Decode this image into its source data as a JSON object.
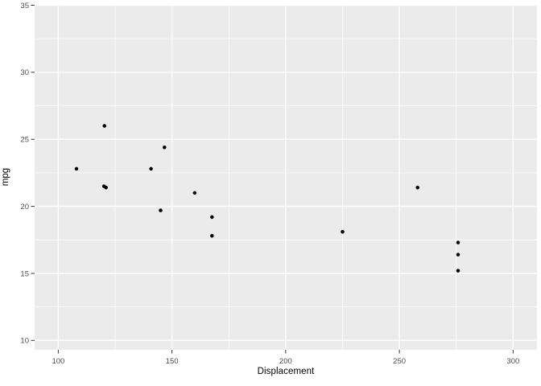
{
  "chart_data": {
    "type": "scatter",
    "title": "",
    "xlabel": "Displacement",
    "ylabel": "mpg",
    "points": [
      {
        "x": 108.0,
        "y": 22.8
      },
      {
        "x": 120.1,
        "y": 21.5
      },
      {
        "x": 120.3,
        "y": 26.0
      },
      {
        "x": 121.0,
        "y": 21.4
      },
      {
        "x": 140.8,
        "y": 22.8
      },
      {
        "x": 145.0,
        "y": 19.7
      },
      {
        "x": 146.7,
        "y": 24.4
      },
      {
        "x": 160.0,
        "y": 21.0
      },
      {
        "x": 167.6,
        "y": 19.2
      },
      {
        "x": 167.6,
        "y": 17.8
      },
      {
        "x": 225.0,
        "y": 18.1
      },
      {
        "x": 258.0,
        "y": 21.4
      },
      {
        "x": 275.8,
        "y": 17.3
      },
      {
        "x": 275.8,
        "y": 16.4
      },
      {
        "x": 275.8,
        "y": 15.2
      }
    ],
    "x_ticks": [
      100,
      150,
      200,
      250,
      300
    ],
    "x_tick_labels": [
      "100",
      "150",
      "200",
      "250",
      "300"
    ],
    "x_minor_ticks": [
      125,
      175,
      225,
      275
    ],
    "y_ticks": [
      10,
      15,
      20,
      25,
      30,
      35
    ],
    "y_tick_labels": [
      "10",
      "15",
      "20",
      "25",
      "30",
      "35"
    ],
    "y_minor_ticks": [
      12.5,
      17.5,
      22.5,
      27.5,
      32.5
    ],
    "xlim": [
      89.6,
      310.5
    ],
    "ylim": [
      9.3,
      35.0
    ],
    "grid": "major-and-minor-on",
    "legend": "none",
    "colors": {
      "panel_background": "#ebebeb",
      "grid_major": "#ffffff",
      "grid_minor": "#ffffff",
      "point": "#000000",
      "tick_mark": "#333333",
      "tick_label": "#4d4d4d",
      "axis_title": "#000000",
      "figure_background": "#ffffff"
    }
  }
}
